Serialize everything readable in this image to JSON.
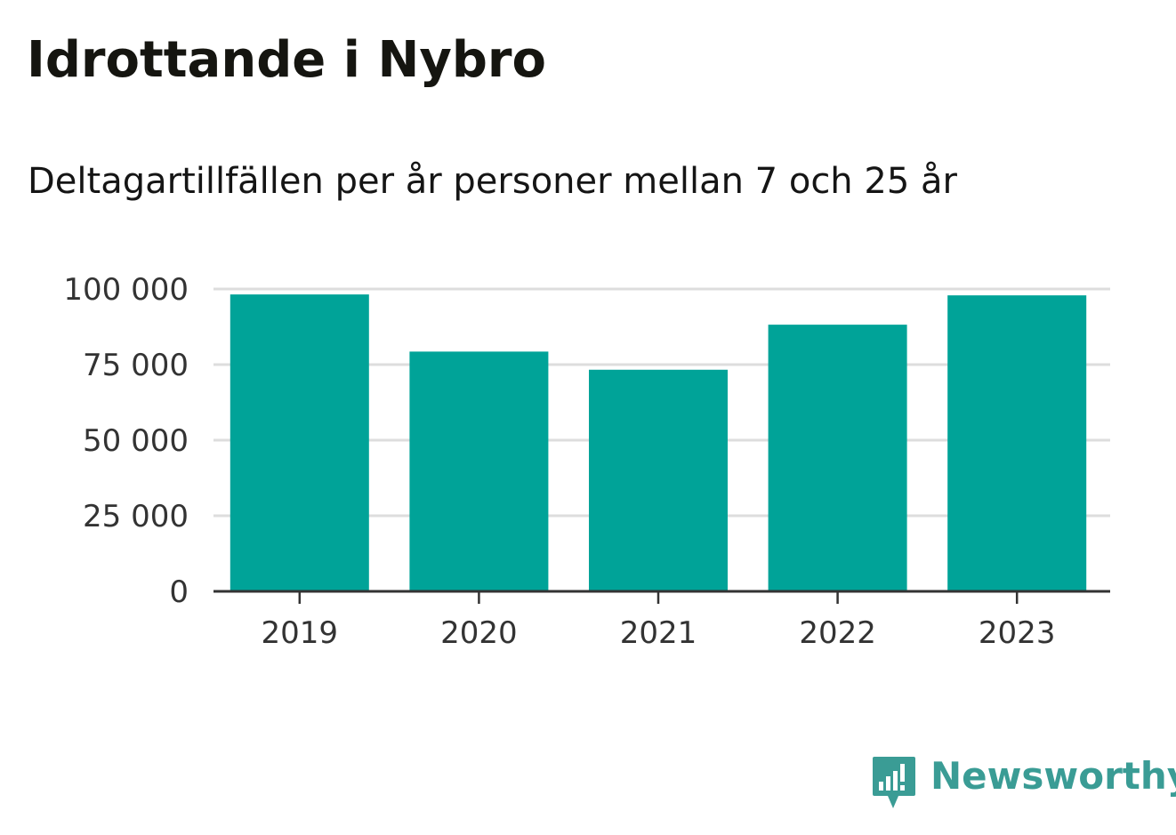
{
  "title": "Idrottande i Nybro",
  "subtitle": "Deltagartillfällen per år personer mellan 7 och 25 år",
  "brand": {
    "name": "Newsworthy",
    "icon": "newsworthy-logo-icon",
    "color": "#3a9c95"
  },
  "colors": {
    "bar": "#00a398",
    "grid": "#dddddd",
    "axis": "#333333",
    "text": "#333333"
  },
  "chart_data": {
    "type": "bar",
    "categories": [
      "2019",
      "2020",
      "2021",
      "2022",
      "2023"
    ],
    "values": [
      98200,
      79300,
      73300,
      88200,
      97900
    ],
    "ylim": [
      0,
      100000
    ],
    "yticks": [
      0,
      25000,
      50000,
      75000,
      100000
    ],
    "ytick_labels": [
      "0",
      "25 000",
      "50 000",
      "75 000",
      "100 000"
    ],
    "grid": true,
    "xlabel": "",
    "ylabel": ""
  }
}
